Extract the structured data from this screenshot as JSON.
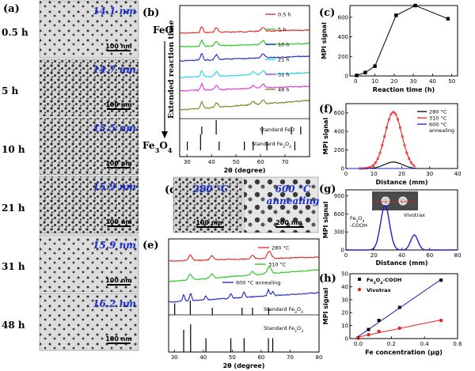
{
  "panels": {
    "a": {
      "label": "(a)",
      "rows": [
        {
          "time": "0.5 h",
          "size": "14.1 nm",
          "scale": "100 nm"
        },
        {
          "time": "5 h",
          "size": "14.7 nm",
          "scale": "100 nm"
        },
        {
          "time": "10 h",
          "size": "15.5 nm",
          "scale": "100 nm"
        },
        {
          "time": "21 h",
          "size": "15.9 nm",
          "scale": "100 nm"
        },
        {
          "time": "31 h",
          "size": "15.9 nm",
          "scale": "100 nm"
        },
        {
          "time": "48 h",
          "size": "16.2 nm",
          "scale": "100 nm"
        }
      ]
    },
    "b": {
      "label": "(b)",
      "top_phase": "FeO",
      "bottom_phase": "Fe3O4",
      "arrow_label": "Extended reaction time"
    },
    "c": {
      "label": "(c)"
    },
    "d": {
      "label": "(d)",
      "left_temp": "280 °C",
      "right_temp": "600 °C",
      "right_line2": "annealing",
      "left_scale": "100 nm",
      "right_scale": "200 nm"
    },
    "e": {
      "label": "(e)"
    },
    "f": {
      "label": "(f)"
    },
    "g": {
      "label": "(g)",
      "sample1_line1": "Fe3O4",
      "sample1_line2": "-COOH",
      "sample2": "Vivotrax"
    },
    "h": {
      "label": "(h)"
    }
  },
  "chart_data": [
    {
      "id": "b",
      "type": "line",
      "xlabel": "2θ (degree)",
      "xlim": [
        27,
        80
      ],
      "xticks": [
        30,
        40,
        50,
        60,
        70,
        80
      ],
      "series": [
        {
          "name": "0.5 h",
          "color": "#e8211d"
        },
        {
          "name": "5 h",
          "color": "#22c41f"
        },
        {
          "name": "10 h",
          "color": "#1a21c8"
        },
        {
          "name": "21 h",
          "color": "#19d6e6"
        },
        {
          "name": "31 h",
          "color": "#e233d6"
        },
        {
          "name": "48 h",
          "color": "#7d7d1c"
        }
      ],
      "references": [
        {
          "name": "Standard FeO",
          "peaks_2theta": [
            36.0,
            41.9,
            60.7,
            72.6,
            76.4
          ]
        },
        {
          "name": "Standard Fe3O4",
          "peaks_2theta": [
            30.1,
            35.5,
            43.1,
            53.4,
            57.0,
            62.6,
            74.0
          ]
        }
      ]
    },
    {
      "id": "c",
      "type": "line",
      "xlabel": "Reaction time (h)",
      "ylabel": "MPI signal",
      "xlim": [
        -3,
        53
      ],
      "ylim": [
        0,
        720
      ],
      "xticks": [
        0,
        10,
        20,
        30,
        40,
        50
      ],
      "yticks": [
        0,
        200,
        400,
        600
      ],
      "x": [
        0.5,
        5,
        10,
        21,
        31,
        48
      ],
      "values": [
        5,
        35,
        100,
        620,
        720,
        585
      ]
    },
    {
      "id": "e",
      "type": "line",
      "xlabel": "2θ (degree)",
      "xlim": [
        28,
        80
      ],
      "xticks": [
        30,
        40,
        50,
        60,
        70,
        80
      ],
      "series": [
        {
          "name": "280 °C",
          "color": "#e8211d"
        },
        {
          "name": "310 °C",
          "color": "#22c41f"
        },
        {
          "name": "600 °C annealing",
          "color": "#1a21c8"
        }
      ],
      "references": [
        {
          "name": "Standard Fe3O4",
          "peaks_2theta": [
            30.1,
            35.5,
            43.1,
            53.4,
            57.0,
            62.6
          ]
        },
        {
          "name": "Standard Fe2O3",
          "peaks_2theta": [
            33.2,
            35.6,
            40.9,
            49.5,
            54.1,
            62.5,
            64.0
          ]
        }
      ]
    },
    {
      "id": "f",
      "type": "line",
      "xlabel": "Distance (mm)",
      "ylabel": "MPI signal",
      "xlim": [
        0,
        40
      ],
      "ylim": [
        0,
        700
      ],
      "xticks": [
        0,
        10,
        20,
        30,
        40
      ],
      "yticks": [
        0,
        200,
        400,
        600
      ],
      "series": [
        {
          "name": "280 °C",
          "color": "#000000",
          "peak_x": 17,
          "peak_y": 70,
          "sigma": 3.2
        },
        {
          "name": "310 °C",
          "color": "#e8211d",
          "peak_x": 17,
          "peak_y": 610,
          "sigma": 3.0
        },
        {
          "name": "600 °C annealing",
          "color": "#1a21c8",
          "peak_x": 17,
          "peak_y": 0,
          "sigma": 3.0
        }
      ]
    },
    {
      "id": "g",
      "type": "line",
      "xlabel": "Distance (mm)",
      "ylabel": "MPI signal",
      "xlim": [
        0,
        80
      ],
      "ylim": [
        0,
        1000
      ],
      "xticks": [
        0,
        20,
        40,
        60,
        80
      ],
      "yticks": [
        0,
        300,
        600,
        900
      ],
      "series": [
        {
          "name": "profile",
          "color": "#1a21c8",
          "peaks": [
            {
              "x": 28,
              "y": 740,
              "sigma": 3.2
            },
            {
              "x": 49,
              "y": 250,
              "sigma": 2.6
            }
          ]
        }
      ]
    },
    {
      "id": "h",
      "type": "scatter",
      "xlabel": "Fe concentration (μg)",
      "ylabel": "MPI signal",
      "xlim": [
        -0.05,
        0.6
      ],
      "ylim": [
        0,
        50
      ],
      "xticks": [
        0.0,
        0.2,
        0.4,
        0.6
      ],
      "yticks": [
        0,
        10,
        20,
        30,
        40,
        50
      ],
      "series": [
        {
          "name": "Fe3O4-COOH",
          "color": "#000000",
          "marker": "square",
          "line_color": "#1a21c8",
          "x": [
            0.0,
            0.0625,
            0.125,
            0.25,
            0.5
          ],
          "values": [
            0.5,
            7,
            14,
            24,
            45
          ]
        },
        {
          "name": "Vivotrax",
          "color": "#e8211d",
          "marker": "circle",
          "line_color": "#e8211d",
          "x": [
            0.0,
            0.0625,
            0.125,
            0.25,
            0.5
          ],
          "values": [
            0.3,
            3,
            5.5,
            8,
            14
          ]
        }
      ]
    }
  ]
}
